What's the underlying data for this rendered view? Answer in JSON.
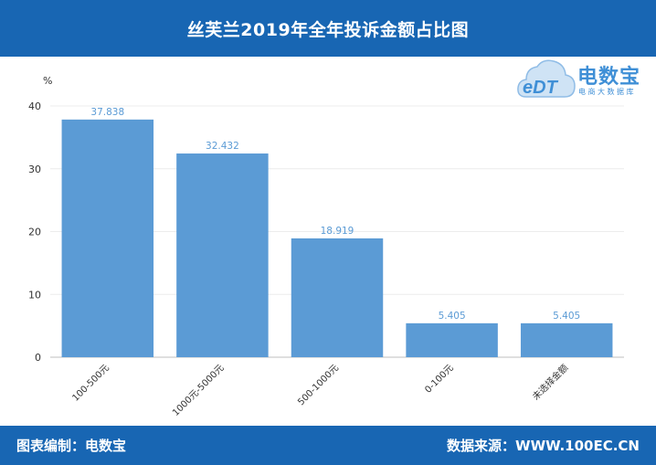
{
  "header": {
    "title": "丝芙兰2019年全年投诉金额占比图"
  },
  "footer": {
    "left": "图表编制：电数宝",
    "right": "数据来源：WWW.100EC.CN"
  },
  "logo": {
    "mark": "eDT",
    "name": "电数宝",
    "sub": "电商大数据库",
    "brand_color": "#3f8fd6"
  },
  "colors": {
    "header_bg": "#1866b3",
    "bar": "#5b9bd5",
    "label": "#5b9bd5",
    "axis_text": "#333333"
  },
  "chart_data": {
    "type": "bar",
    "unit_label": "%",
    "categories": [
      "100-500元",
      "1000元-5000元",
      "500-1000元",
      "0-100元",
      "未选择金额"
    ],
    "values": [
      37.838,
      32.432,
      18.919,
      5.405,
      5.405
    ],
    "value_labels": [
      "37.838",
      "32.432",
      "18.919",
      "5.405",
      "5.405"
    ],
    "yticks": [
      0,
      10,
      20,
      30,
      40
    ],
    "ylim": [
      0,
      40
    ],
    "grid": true,
    "legend": "none"
  }
}
